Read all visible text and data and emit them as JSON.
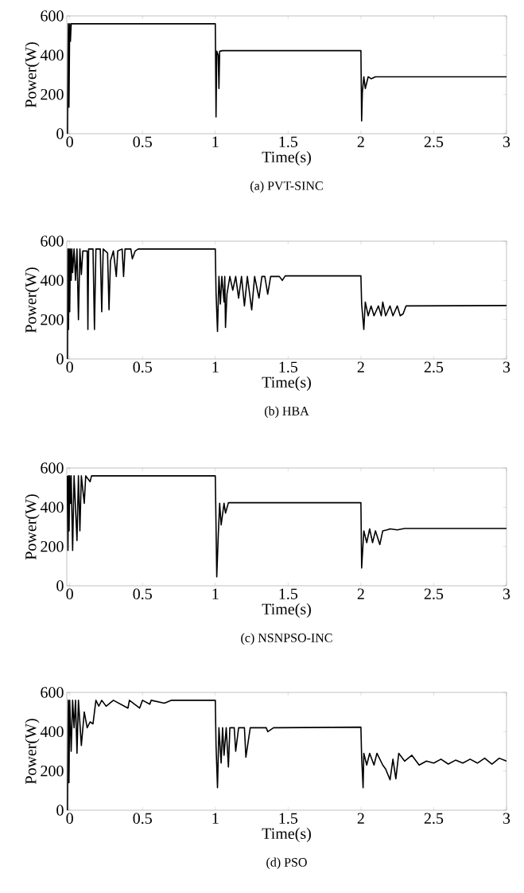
{
  "chart_data": [
    {
      "type": "line",
      "title": "(a)  PVT-SINC",
      "xlabel": "Time(s)",
      "ylabel": "Power(W)",
      "xlim": [
        -0.02,
        3
      ],
      "ylim": [
        0,
        600
      ],
      "xticks": [
        0,
        0.5,
        1,
        1.5,
        2,
        2.5,
        3
      ],
      "yticks": [
        0,
        200,
        400,
        600
      ],
      "color": "#000000",
      "x": [
        -0.015,
        -0.01,
        -0.005,
        0,
        0.005,
        0.01,
        0.02,
        1.0,
        1.005,
        1.01,
        1.02,
        1.025,
        1.03,
        1.05,
        2.0,
        2.005,
        2.01,
        2.02,
        2.03,
        2.05,
        2.07,
        2.1,
        3
      ],
      "values": [
        0,
        560,
        135,
        560,
        470,
        560,
        560,
        560,
        85,
        420,
        400,
        230,
        420,
        423,
        423,
        65,
        210,
        290,
        230,
        290,
        280,
        290,
        290
      ]
    },
    {
      "type": "line",
      "title": "(b)  HBA",
      "xlabel": "Time(s)",
      "ylabel": "Power(W)",
      "xlim": [
        -0.02,
        3
      ],
      "ylim": [
        0,
        600
      ],
      "xticks": [
        0,
        0.5,
        1,
        1.5,
        2,
        2.5,
        3
      ],
      "yticks": [
        0,
        200,
        400,
        600
      ],
      "color": "#000000",
      "x": [
        -0.015,
        -0.012,
        -0.008,
        -0.004,
        0.0,
        0.005,
        0.01,
        0.015,
        0.02,
        0.03,
        0.04,
        0.05,
        0.06,
        0.07,
        0.08,
        0.09,
        0.12,
        0.125,
        0.13,
        0.16,
        0.17,
        0.18,
        0.21,
        0.22,
        0.23,
        0.26,
        0.27,
        0.28,
        0.3,
        0.32,
        0.33,
        0.36,
        0.37,
        0.38,
        0.42,
        0.43,
        0.45,
        0.47,
        1.0,
        1.005,
        1.015,
        1.025,
        1.035,
        1.045,
        1.06,
        1.065,
        1.07,
        1.08,
        1.1,
        1.12,
        1.14,
        1.16,
        1.18,
        1.2,
        1.22,
        1.25,
        1.27,
        1.3,
        1.32,
        1.34,
        1.36,
        1.38,
        1.44,
        1.46,
        1.48,
        2.0,
        2.005,
        2.02,
        2.03,
        2.05,
        2.07,
        2.09,
        2.12,
        2.14,
        2.15,
        2.17,
        2.2,
        2.22,
        2.25,
        2.27,
        2.29,
        2.31,
        3
      ],
      "values": [
        0,
        560,
        150,
        560,
        240,
        560,
        400,
        560,
        440,
        560,
        400,
        560,
        200,
        560,
        430,
        550,
        550,
        150,
        560,
        560,
        150,
        560,
        560,
        240,
        560,
        540,
        250,
        500,
        550,
        420,
        550,
        560,
        420,
        560,
        560,
        510,
        550,
        560,
        560,
        340,
        140,
        420,
        280,
        420,
        290,
        420,
        160,
        330,
        420,
        350,
        420,
        310,
        420,
        270,
        420,
        250,
        420,
        310,
        420,
        420,
        330,
        420,
        420,
        400,
        423,
        423,
        280,
        150,
        290,
        220,
        270,
        220,
        270,
        220,
        290,
        220,
        270,
        220,
        270,
        220,
        230,
        270,
        272
      ]
    },
    {
      "type": "line",
      "title": "(c)  NSNPSO-INC",
      "xlabel": "Time(s)",
      "ylabel": "Power(W)",
      "xlim": [
        -0.02,
        3
      ],
      "ylim": [
        0,
        600
      ],
      "xticks": [
        0,
        0.5,
        1,
        1.5,
        2,
        2.5,
        3
      ],
      "yticks": [
        0,
        200,
        400,
        600
      ],
      "color": "#000000",
      "x": [
        -0.017,
        -0.012,
        -0.008,
        -0.004,
        0.0,
        0.005,
        0.01,
        0.02,
        0.03,
        0.05,
        0.06,
        0.07,
        0.08,
        0.1,
        0.11,
        0.14,
        0.15,
        1.0,
        1.01,
        1.02,
        1.03,
        1.04,
        1.06,
        1.07,
        1.09,
        2.0,
        2.005,
        2.02,
        2.04,
        2.06,
        2.08,
        2.1,
        2.13,
        2.15,
        2.18,
        2.2,
        2.25,
        2.3,
        3
      ],
      "values": [
        560,
        180,
        560,
        280,
        560,
        420,
        560,
        180,
        560,
        230,
        560,
        280,
        560,
        420,
        560,
        530,
        560,
        560,
        45,
        250,
        420,
        310,
        420,
        370,
        423,
        423,
        90,
        280,
        220,
        290,
        220,
        280,
        210,
        280,
        285,
        290,
        285,
        292,
        292
      ]
    },
    {
      "type": "line",
      "title": "(d)  PSO",
      "xlabel": "Time(s)",
      "ylabel": "Power(W)",
      "xlim": [
        -0.02,
        3
      ],
      "ylim": [
        0,
        600
      ],
      "xticks": [
        0,
        0.5,
        1,
        1.5,
        2,
        2.5,
        3
      ],
      "yticks": [
        0,
        200,
        400,
        600
      ],
      "color": "#000000",
      "x": [
        -0.015,
        -0.01,
        -0.005,
        0.0,
        0.01,
        0.02,
        0.03,
        0.04,
        0.05,
        0.06,
        0.08,
        0.1,
        0.12,
        0.14,
        0.16,
        0.18,
        0.2,
        0.22,
        0.25,
        0.3,
        0.4,
        0.41,
        0.48,
        0.5,
        0.55,
        0.56,
        0.65,
        0.7,
        1.0,
        1.005,
        1.015,
        1.025,
        1.04,
        1.05,
        1.06,
        1.075,
        1.09,
        1.1,
        1.13,
        1.14,
        1.16,
        1.2,
        1.21,
        1.24,
        1.35,
        1.36,
        1.4,
        2.0,
        2.005,
        2.015,
        2.02,
        2.04,
        2.06,
        2.09,
        2.11,
        2.15,
        2.17,
        2.2,
        2.22,
        2.24,
        2.26,
        2.3,
        2.35,
        2.4,
        2.45,
        2.5,
        2.55,
        2.6,
        2.65,
        2.7,
        2.75,
        2.8,
        2.85,
        2.9,
        2.95,
        3
      ],
      "values": [
        0,
        560,
        140,
        560,
        300,
        560,
        420,
        560,
        290,
        560,
        330,
        500,
        420,
        450,
        440,
        560,
        530,
        560,
        530,
        560,
        520,
        560,
        520,
        560,
        540,
        560,
        545,
        560,
        560,
        330,
        115,
        420,
        240,
        420,
        280,
        420,
        220,
        420,
        420,
        300,
        420,
        420,
        270,
        420,
        420,
        400,
        420,
        423,
        270,
        115,
        290,
        230,
        290,
        230,
        290,
        230,
        210,
        155,
        260,
        160,
        290,
        250,
        280,
        230,
        250,
        240,
        260,
        235,
        255,
        240,
        260,
        240,
        265,
        235,
        265,
        250
      ]
    }
  ]
}
